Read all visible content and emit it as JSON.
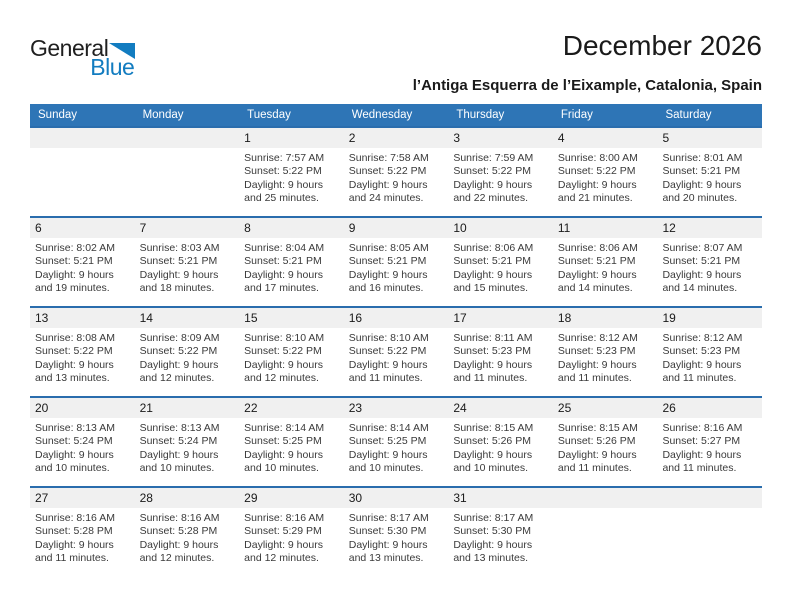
{
  "logo": {
    "general": "General",
    "blue": "Blue"
  },
  "header": {
    "title": "December 2026",
    "subtitle": "l’Antiga Esquerra de l’Eixample, Catalonia, Spain"
  },
  "colors": {
    "header_blue": "#2E75B6",
    "row_line_blue": "#2A6DAD",
    "band_gray": "#F0F0F0",
    "logo_blue": "#127CC0",
    "title_black": "#1A1A1A",
    "detail_gray": "#3A3A3A",
    "page_white": "#FFFFFF"
  },
  "calendar": {
    "weekdays": [
      "Sunday",
      "Monday",
      "Tuesday",
      "Wednesday",
      "Thursday",
      "Friday",
      "Saturday"
    ],
    "weeks": [
      [
        null,
        null,
        {
          "day": "1",
          "sunrise": "Sunrise: 7:57 AM",
          "sunset": "Sunset: 5:22 PM",
          "daylight": "Daylight: 9 hours and 25 minutes."
        },
        {
          "day": "2",
          "sunrise": "Sunrise: 7:58 AM",
          "sunset": "Sunset: 5:22 PM",
          "daylight": "Daylight: 9 hours and 24 minutes."
        },
        {
          "day": "3",
          "sunrise": "Sunrise: 7:59 AM",
          "sunset": "Sunset: 5:22 PM",
          "daylight": "Daylight: 9 hours and 22 minutes."
        },
        {
          "day": "4",
          "sunrise": "Sunrise: 8:00 AM",
          "sunset": "Sunset: 5:22 PM",
          "daylight": "Daylight: 9 hours and 21 minutes."
        },
        {
          "day": "5",
          "sunrise": "Sunrise: 8:01 AM",
          "sunset": "Sunset: 5:21 PM",
          "daylight": "Daylight: 9 hours and 20 minutes."
        }
      ],
      [
        {
          "day": "6",
          "sunrise": "Sunrise: 8:02 AM",
          "sunset": "Sunset: 5:21 PM",
          "daylight": "Daylight: 9 hours and 19 minutes."
        },
        {
          "day": "7",
          "sunrise": "Sunrise: 8:03 AM",
          "sunset": "Sunset: 5:21 PM",
          "daylight": "Daylight: 9 hours and 18 minutes."
        },
        {
          "day": "8",
          "sunrise": "Sunrise: 8:04 AM",
          "sunset": "Sunset: 5:21 PM",
          "daylight": "Daylight: 9 hours and 17 minutes."
        },
        {
          "day": "9",
          "sunrise": "Sunrise: 8:05 AM",
          "sunset": "Sunset: 5:21 PM",
          "daylight": "Daylight: 9 hours and 16 minutes."
        },
        {
          "day": "10",
          "sunrise": "Sunrise: 8:06 AM",
          "sunset": "Sunset: 5:21 PM",
          "daylight": "Daylight: 9 hours and 15 minutes."
        },
        {
          "day": "11",
          "sunrise": "Sunrise: 8:06 AM",
          "sunset": "Sunset: 5:21 PM",
          "daylight": "Daylight: 9 hours and 14 minutes."
        },
        {
          "day": "12",
          "sunrise": "Sunrise: 8:07 AM",
          "sunset": "Sunset: 5:21 PM",
          "daylight": "Daylight: 9 hours and 14 minutes."
        }
      ],
      [
        {
          "day": "13",
          "sunrise": "Sunrise: 8:08 AM",
          "sunset": "Sunset: 5:22 PM",
          "daylight": "Daylight: 9 hours and 13 minutes."
        },
        {
          "day": "14",
          "sunrise": "Sunrise: 8:09 AM",
          "sunset": "Sunset: 5:22 PM",
          "daylight": "Daylight: 9 hours and 12 minutes."
        },
        {
          "day": "15",
          "sunrise": "Sunrise: 8:10 AM",
          "sunset": "Sunset: 5:22 PM",
          "daylight": "Daylight: 9 hours and 12 minutes."
        },
        {
          "day": "16",
          "sunrise": "Sunrise: 8:10 AM",
          "sunset": "Sunset: 5:22 PM",
          "daylight": "Daylight: 9 hours and 11 minutes."
        },
        {
          "day": "17",
          "sunrise": "Sunrise: 8:11 AM",
          "sunset": "Sunset: 5:23 PM",
          "daylight": "Daylight: 9 hours and 11 minutes."
        },
        {
          "day": "18",
          "sunrise": "Sunrise: 8:12 AM",
          "sunset": "Sunset: 5:23 PM",
          "daylight": "Daylight: 9 hours and 11 minutes."
        },
        {
          "day": "19",
          "sunrise": "Sunrise: 8:12 AM",
          "sunset": "Sunset: 5:23 PM",
          "daylight": "Daylight: 9 hours and 11 minutes."
        }
      ],
      [
        {
          "day": "20",
          "sunrise": "Sunrise: 8:13 AM",
          "sunset": "Sunset: 5:24 PM",
          "daylight": "Daylight: 9 hours and 10 minutes."
        },
        {
          "day": "21",
          "sunrise": "Sunrise: 8:13 AM",
          "sunset": "Sunset: 5:24 PM",
          "daylight": "Daylight: 9 hours and 10 minutes."
        },
        {
          "day": "22",
          "sunrise": "Sunrise: 8:14 AM",
          "sunset": "Sunset: 5:25 PM",
          "daylight": "Daylight: 9 hours and 10 minutes."
        },
        {
          "day": "23",
          "sunrise": "Sunrise: 8:14 AM",
          "sunset": "Sunset: 5:25 PM",
          "daylight": "Daylight: 9 hours and 10 minutes."
        },
        {
          "day": "24",
          "sunrise": "Sunrise: 8:15 AM",
          "sunset": "Sunset: 5:26 PM",
          "daylight": "Daylight: 9 hours and 10 minutes."
        },
        {
          "day": "25",
          "sunrise": "Sunrise: 8:15 AM",
          "sunset": "Sunset: 5:26 PM",
          "daylight": "Daylight: 9 hours and 11 minutes."
        },
        {
          "day": "26",
          "sunrise": "Sunrise: 8:16 AM",
          "sunset": "Sunset: 5:27 PM",
          "daylight": "Daylight: 9 hours and 11 minutes."
        }
      ],
      [
        {
          "day": "27",
          "sunrise": "Sunrise: 8:16 AM",
          "sunset": "Sunset: 5:28 PM",
          "daylight": "Daylight: 9 hours and 11 minutes."
        },
        {
          "day": "28",
          "sunrise": "Sunrise: 8:16 AM",
          "sunset": "Sunset: 5:28 PM",
          "daylight": "Daylight: 9 hours and 12 minutes."
        },
        {
          "day": "29",
          "sunrise": "Sunrise: 8:16 AM",
          "sunset": "Sunset: 5:29 PM",
          "daylight": "Daylight: 9 hours and 12 minutes."
        },
        {
          "day": "30",
          "sunrise": "Sunrise: 8:17 AM",
          "sunset": "Sunset: 5:30 PM",
          "daylight": "Daylight: 9 hours and 13 minutes."
        },
        {
          "day": "31",
          "sunrise": "Sunrise: 8:17 AM",
          "sunset": "Sunset: 5:30 PM",
          "daylight": "Daylight: 9 hours and 13 minutes."
        },
        null,
        null
      ]
    ]
  }
}
